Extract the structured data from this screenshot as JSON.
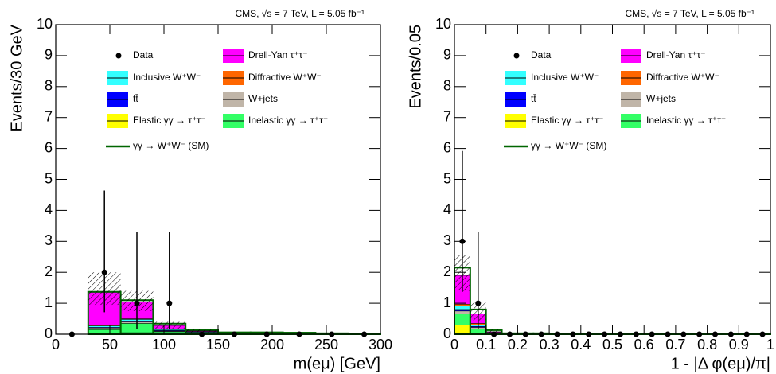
{
  "chart_data": [
    {
      "type": "histogram",
      "title": "CMS, √s = 7 TeV, L = 5.05 fb⁻¹",
      "y_label": "Events/30 GeV",
      "x_label": "m(eμ) [GeV]",
      "bins": [
        0,
        30,
        60,
        90,
        120,
        150,
        180,
        210,
        240,
        270,
        300
      ],
      "xlim": [
        0,
        300
      ],
      "xticks": [
        0,
        50,
        100,
        150,
        200,
        250,
        300
      ],
      "ylim": [
        0,
        10
      ],
      "yticks": [
        0,
        1,
        2,
        3,
        4,
        5,
        6,
        7,
        8,
        9,
        10
      ],
      "series": [
        {
          "name": "Elastic γγ → τ⁺τ⁻",
          "color": "#ffff00",
          "values": [
            0,
            0.03,
            0.05,
            0.02,
            0.01,
            0,
            0,
            0,
            0,
            0
          ]
        },
        {
          "name": "Inelastic γγ → τ⁺τ⁻",
          "color": "#33ff66",
          "values": [
            0,
            0.12,
            0.3,
            0.06,
            0.03,
            0.01,
            0.01,
            0.01,
            0,
            0
          ]
        },
        {
          "name": "W+jets",
          "color": "#c0b5a8",
          "values": [
            0,
            0.05,
            0.05,
            0.02,
            0.01,
            0,
            0,
            0,
            0,
            0
          ]
        },
        {
          "name": "tt̄",
          "color": "#0000ff",
          "values": [
            0,
            0.02,
            0.03,
            0.02,
            0.01,
            0.01,
            0.01,
            0,
            0,
            0
          ]
        },
        {
          "name": "Inclusive W⁺W⁻",
          "color": "#33ffff",
          "values": [
            0,
            0.05,
            0.05,
            0.03,
            0.02,
            0.01,
            0.01,
            0.01,
            0.01,
            0
          ]
        },
        {
          "name": "Diffractive W⁺W⁻",
          "color": "#ff6600",
          "values": [
            0,
            0.02,
            0.02,
            0.01,
            0.01,
            0,
            0,
            0,
            0,
            0
          ]
        },
        {
          "name": "Drell-Yan τ⁺τ⁻",
          "color": "#ff00ff",
          "values": [
            0,
            1.06,
            0.55,
            0.12,
            0.02,
            0,
            0,
            0,
            0,
            0
          ]
        },
        {
          "name": "γγ → W⁺W⁻ (SM)",
          "color": "#006600",
          "values": [
            0,
            0.02,
            0.05,
            0.06,
            0.03,
            0.03,
            0.03,
            0.03,
            0.02,
            0.02
          ]
        }
      ],
      "band_low": [
        0,
        0.95,
        0.75,
        0.15,
        0.05,
        0,
        0,
        0,
        0,
        0
      ],
      "band_high": [
        0,
        2.0,
        1.4,
        0.4,
        0.15,
        0,
        0,
        0,
        0,
        0
      ],
      "data": {
        "name": "Data",
        "values": [
          0,
          2,
          1,
          1,
          0,
          0,
          0,
          0,
          0,
          0
        ],
        "errors_low": [
          0,
          1.29,
          0.83,
          0.83,
          0,
          0,
          0,
          0,
          0,
          0
        ],
        "errors_high": [
          0,
          2.64,
          2.3,
          2.3,
          0,
          0,
          0,
          0,
          0,
          0
        ]
      }
    },
    {
      "type": "histogram",
      "title": "CMS, √s = 7 TeV, L = 5.05 fb⁻¹",
      "y_label": "Events/0.05",
      "x_label": "1 - |Δ φ(eμ)/π|",
      "bins": [
        0,
        0.05,
        0.1,
        0.15,
        0.2,
        0.25,
        0.3,
        0.35,
        0.4,
        0.45,
        0.5,
        0.55,
        0.6,
        0.65,
        0.7,
        0.75,
        0.8,
        0.85,
        0.9,
        0.95,
        1
      ],
      "xlim": [
        0,
        1
      ],
      "xticks": [
        0,
        0.1,
        0.2,
        0.3,
        0.4,
        0.5,
        0.6,
        0.7,
        0.8,
        0.9,
        1
      ],
      "ylim": [
        0,
        10
      ],
      "yticks": [
        0,
        1,
        2,
        3,
        4,
        5,
        6,
        7,
        8,
        9,
        10
      ],
      "series": [
        {
          "name": "Elastic γγ → τ⁺τ⁻",
          "color": "#ffff00",
          "values": [
            0.3,
            0.02,
            0.01,
            0,
            0,
            0,
            0,
            0,
            0,
            0,
            0,
            0,
            0,
            0,
            0,
            0,
            0,
            0,
            0,
            0
          ]
        },
        {
          "name": "Inelastic γγ → τ⁺τ⁻",
          "color": "#33ff66",
          "values": [
            0.35,
            0.15,
            0.03,
            0.01,
            0.01,
            0.01,
            0,
            0,
            0,
            0,
            0,
            0,
            0,
            0,
            0,
            0,
            0,
            0,
            0,
            0
          ]
        },
        {
          "name": "W+jets",
          "color": "#c0b5a8",
          "values": [
            0.1,
            0.05,
            0,
            0,
            0,
            0,
            0,
            0,
            0,
            0,
            0,
            0,
            0,
            0,
            0,
            0,
            0,
            0,
            0,
            0
          ]
        },
        {
          "name": "tt̄",
          "color": "#0000ff",
          "values": [
            0.05,
            0.03,
            0.01,
            0,
            0,
            0,
            0,
            0,
            0,
            0,
            0,
            0,
            0,
            0,
            0,
            0,
            0,
            0,
            0,
            0
          ]
        },
        {
          "name": "Inclusive W⁺W⁻",
          "color": "#33ffff",
          "values": [
            0.12,
            0.05,
            0.01,
            0,
            0,
            0,
            0,
            0,
            0,
            0,
            0,
            0,
            0,
            0,
            0,
            0,
            0,
            0,
            0,
            0
          ]
        },
        {
          "name": "Diffractive W⁺W⁻",
          "color": "#ff6600",
          "values": [
            0.05,
            0.05,
            0,
            0,
            0,
            0,
            0,
            0,
            0,
            0,
            0,
            0,
            0,
            0,
            0,
            0,
            0,
            0,
            0,
            0
          ]
        },
        {
          "name": "Drell-Yan τ⁺τ⁻",
          "color": "#ff00ff",
          "values": [
            0.93,
            0.3,
            0.02,
            0,
            0,
            0,
            0,
            0,
            0,
            0,
            0,
            0,
            0,
            0,
            0,
            0,
            0,
            0,
            0,
            0
          ]
        },
        {
          "name": "γγ → W⁺W⁻ (SM)",
          "color": "#006600",
          "values": [
            0.25,
            0.15,
            0.05,
            0.02,
            0.02,
            0.02,
            0.02,
            0.02,
            0.02,
            0.02,
            0.02,
            0.02,
            0.02,
            0.02,
            0.02,
            0.02,
            0.02,
            0.02,
            0.02,
            0.02
          ]
        }
      ],
      "band_low": [
        1.4,
        0.45,
        0.05,
        0,
        0,
        0,
        0,
        0,
        0,
        0,
        0,
        0,
        0,
        0,
        0,
        0,
        0,
        0,
        0,
        0
      ],
      "band_high": [
        2.55,
        1.05,
        0.15,
        0,
        0,
        0,
        0,
        0,
        0,
        0,
        0,
        0,
        0,
        0,
        0,
        0,
        0,
        0,
        0,
        0
      ],
      "data": {
        "name": "Data",
        "values": [
          3,
          1,
          0,
          0,
          0,
          0,
          0,
          0,
          0,
          0,
          0,
          0,
          0,
          0,
          0,
          0,
          0,
          0,
          0,
          0
        ],
        "errors_low": [
          1.63,
          0.83,
          0,
          0,
          0,
          0,
          0,
          0,
          0,
          0,
          0,
          0,
          0,
          0,
          0,
          0,
          0,
          0,
          0,
          0
        ],
        "errors_high": [
          2.92,
          2.3,
          0,
          0,
          0,
          0,
          0,
          0,
          0,
          0,
          0,
          0,
          0,
          0,
          0,
          0,
          0,
          0,
          0,
          0
        ]
      }
    }
  ]
}
